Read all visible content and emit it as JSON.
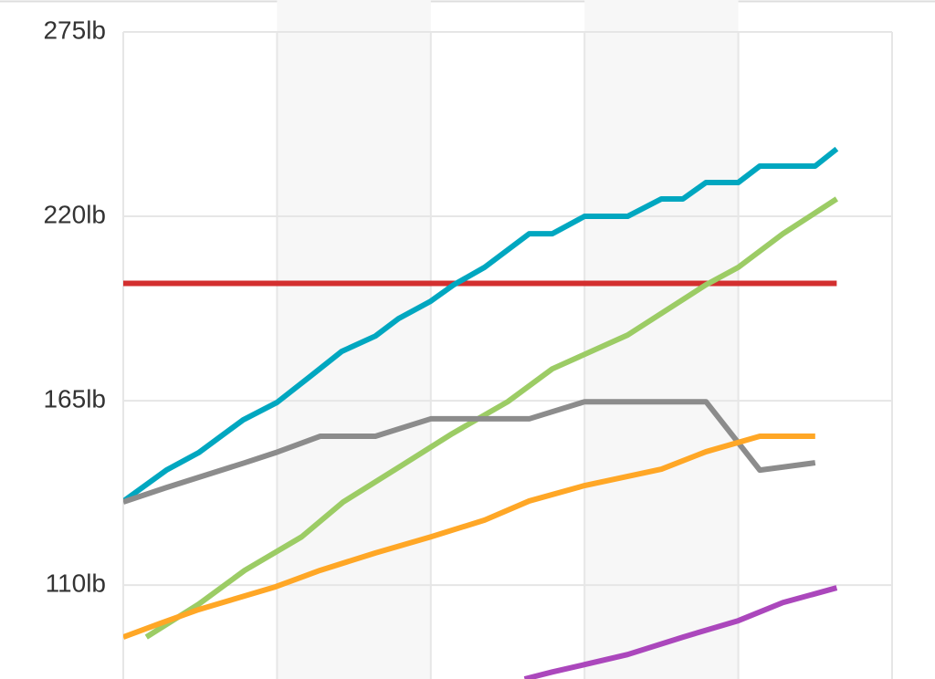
{
  "chart_data": {
    "type": "line",
    "xlim": [
      0,
      50
    ],
    "xticks": [
      0,
      10,
      20,
      30,
      40,
      50
    ],
    "ylim": [
      82,
      275
    ],
    "yticks": [
      {
        "value": 110,
        "label": "110lb"
      },
      {
        "value": 165,
        "label": "165lb"
      },
      {
        "value": 220,
        "label": "220lb"
      },
      {
        "value": 275,
        "label": "275lb"
      }
    ],
    "grid": true,
    "bands": true,
    "series": [
      {
        "color": "#d32f2f",
        "x": [
          0,
          46.4
        ],
        "values": [
          200,
          200
        ]
      },
      {
        "color": "#00a7c0",
        "x": [
          0,
          2.8,
          4.9,
          7.8,
          10,
          12.2,
          14.2,
          16.4,
          17.9,
          20,
          21.5,
          23.5,
          26.4,
          27.9,
          30,
          32.8,
          35,
          36.4,
          37.9,
          40,
          41.4,
          45,
          46.4
        ],
        "values": [
          135,
          144.3,
          149.5,
          159.3,
          164.5,
          172.4,
          179.7,
          184.3,
          189.5,
          194.7,
          199.6,
          204.8,
          214.8,
          214.8,
          220,
          220,
          225.2,
          225.2,
          230.1,
          230.1,
          235,
          235,
          240.1
        ]
      },
      {
        "color": "#9ccc65",
        "x": [
          1.5,
          4.9,
          7.9,
          11.6,
          14.3,
          17.9,
          21.4,
          25,
          27.9,
          32.8,
          37.9,
          40,
          42.9,
          46.4
        ],
        "values": [
          94.5,
          104.3,
          114.4,
          124.4,
          134.8,
          145.1,
          155.2,
          164.7,
          174.5,
          184.6,
          199.6,
          204.8,
          214.8,
          225.2
        ]
      },
      {
        "color": "#8c8c8c",
        "x": [
          0,
          2.8,
          7.9,
          9.9,
          12.8,
          16.4,
          20,
          26.4,
          30,
          37.9,
          41.4,
          45
        ],
        "values": [
          134.8,
          139.1,
          146.5,
          149.5,
          154.4,
          154.4,
          159.6,
          159.6,
          164.7,
          164.7,
          144.3,
          146.5
        ]
      },
      {
        "color": "#ffa726",
        "x": [
          0,
          2.4,
          4.9,
          9.9,
          12.8,
          16.4,
          20,
          23.5,
          26.4,
          30,
          35,
          37.9,
          41.4,
          45
        ],
        "values": [
          94.5,
          98.6,
          102.7,
          109.5,
          114.4,
          119.6,
          124.4,
          129.4,
          135.1,
          139.7,
          144.6,
          149.8,
          154.4,
          154.4
        ]
      },
      {
        "color": "#ab47bc",
        "x": [
          26.1,
          27.9,
          30,
          32.8,
          36.4,
          40,
          42.9,
          46.4
        ],
        "values": [
          82,
          84.1,
          86.3,
          89.3,
          94.5,
          99.4,
          104.8,
          109.2
        ]
      }
    ]
  }
}
